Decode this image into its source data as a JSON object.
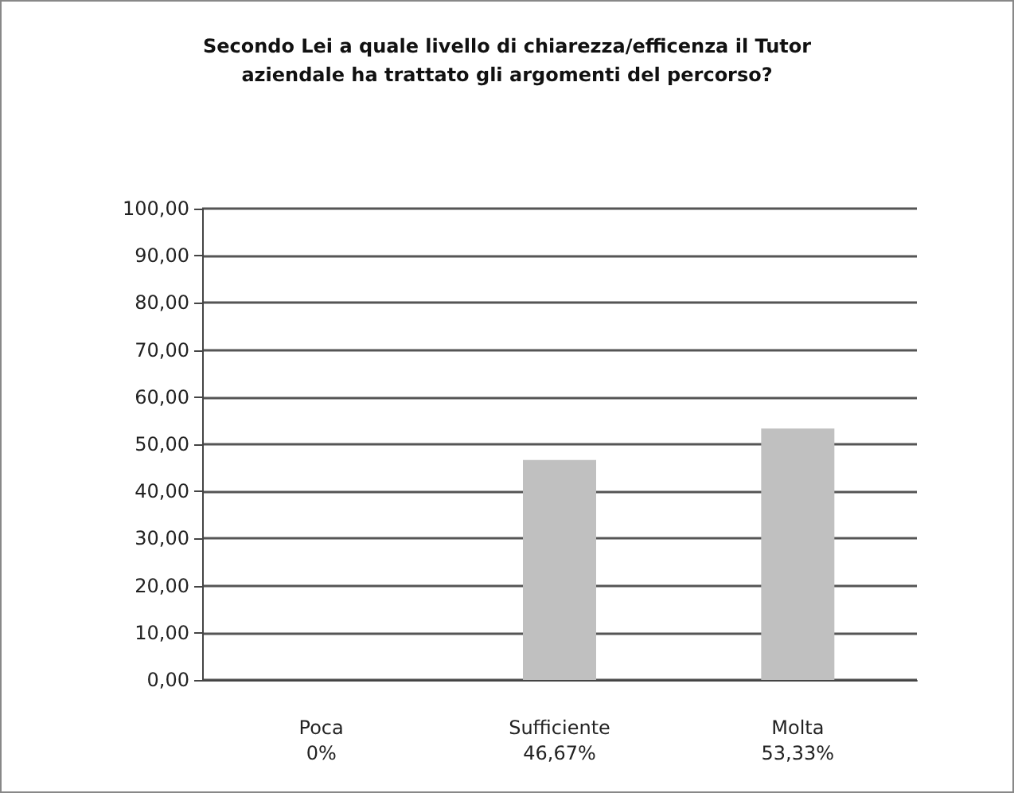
{
  "chart_data": {
    "type": "bar",
    "title": "Secondo Lei a quale livello di chiarezza/efficenza il Tutor\naziendale ha trattato gli argomenti del percorso?",
    "categories": [
      "Poca",
      "Sufficiente",
      "Molta"
    ],
    "values": [
      0,
      46.67,
      53.33
    ],
    "value_labels": [
      "0%",
      "46,67%",
      "53,33%"
    ],
    "color": "#c0c0c0",
    "ylim": [
      0,
      100
    ],
    "yticks": [
      {
        "value": 0,
        "label": "0,00"
      },
      {
        "value": 10,
        "label": "10,00"
      },
      {
        "value": 20,
        "label": "20,00"
      },
      {
        "value": 30,
        "label": "30,00"
      },
      {
        "value": 40,
        "label": "40,00"
      },
      {
        "value": 50,
        "label": "50,00"
      },
      {
        "value": 60,
        "label": "60,00"
      },
      {
        "value": 70,
        "label": "70,00"
      },
      {
        "value": 80,
        "label": "80,00"
      },
      {
        "value": 90,
        "label": "90,00"
      },
      {
        "value": 100,
        "label": "100,00"
      }
    ],
    "grid": "y"
  }
}
